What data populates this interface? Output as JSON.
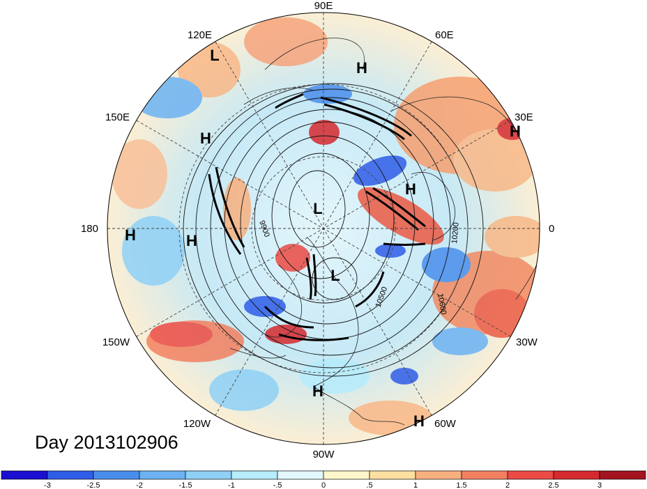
{
  "title": "Day 2013102906",
  "longitude_labels": [
    "90E",
    "60E",
    "30E",
    "0",
    "30W",
    "60W",
    "90W",
    "120W",
    "150W",
    "180",
    "150E",
    "120E"
  ],
  "pressure_systems": [
    {
      "label": "L",
      "kind": "low"
    },
    {
      "label": "H",
      "kind": "high"
    },
    {
      "label": "H",
      "kind": "high"
    },
    {
      "label": "H",
      "kind": "high"
    },
    {
      "label": "H",
      "kind": "high"
    },
    {
      "label": "H",
      "kind": "high"
    },
    {
      "label": "H",
      "kind": "high"
    },
    {
      "label": "L",
      "kind": "low"
    },
    {
      "label": "L",
      "kind": "low"
    },
    {
      "label": "H",
      "kind": "high"
    },
    {
      "label": "H",
      "kind": "high"
    }
  ],
  "contour_labels": [
    "9900",
    "10200",
    "10500",
    "10600"
  ],
  "colorbar": {
    "ticks": [
      "-3",
      "-2.5",
      "-2",
      "-1.5",
      "-1",
      "-.5",
      "0",
      ".5",
      "1",
      "1.5",
      "2",
      "2.5",
      "3"
    ],
    "colors": [
      "#1a0fd0",
      "#2f5de8",
      "#4a8eec",
      "#6cb2f2",
      "#8fd0f6",
      "#b6ecfb",
      "#e2f8fd",
      "#fff6cc",
      "#fde0a0",
      "#f8b07e",
      "#f28060",
      "#eb4b44",
      "#d52a2f",
      "#a31420"
    ]
  }
}
